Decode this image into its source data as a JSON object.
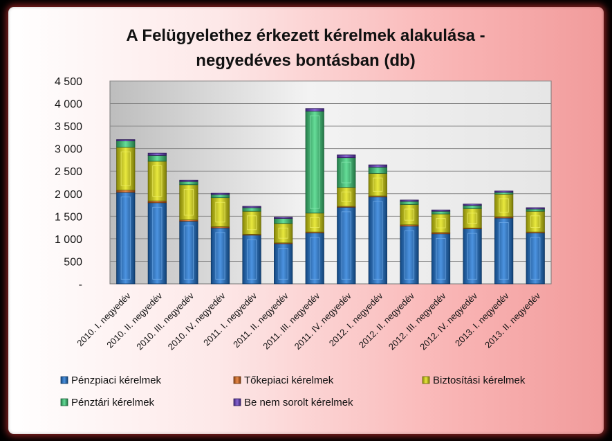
{
  "chart_data": {
    "type": "bar",
    "stacked": true,
    "title_lines": [
      "A Felügyelethez érkezett kérelmek alakulása -",
      "negyedéves bontásban (db)"
    ],
    "categories": [
      "2010. I. negyedév",
      "2010. II. negyedév",
      "2010. III. negyedév",
      "2010. IV. negyedév",
      "2011. I. negyedév",
      "2011. II. negyedév",
      "2011. III. negyedév",
      "2011. IV. negyedév",
      "2012. I. negyedév",
      "2012. II. negyedév",
      "2012. III. negyedév",
      "2012. IV. negyedév",
      "2013. I. negyedév",
      "2013. II. negyedév"
    ],
    "series": [
      {
        "name": "Pénzpiaci kérelmek",
        "color": "#1f78d8",
        "values": [
          2030,
          1800,
          1390,
          1240,
          1080,
          890,
          1130,
          1700,
          1930,
          1280,
          1110,
          1220,
          1460,
          1130
        ]
      },
      {
        "name": "Tőkepiaci kérelmek",
        "color": "#e36c1c",
        "values": [
          50,
          40,
          30,
          30,
          20,
          20,
          20,
          20,
          20,
          30,
          30,
          20,
          30,
          20
        ]
      },
      {
        "name": "Biztosítási kérelmek",
        "color": "#e2e20e",
        "values": [
          950,
          880,
          780,
          640,
          510,
          430,
          420,
          420,
          500,
          450,
          410,
          430,
          500,
          460
        ]
      },
      {
        "name": "Pénztári kérelmek",
        "color": "#3fd47e",
        "values": [
          140,
          130,
          70,
          70,
          80,
          110,
          2260,
          660,
          140,
          70,
          60,
          70,
          40,
          50
        ]
      },
      {
        "name": "Be nem sorolt kérelmek",
        "color": "#6a3fc8",
        "values": [
          30,
          50,
          30,
          30,
          30,
          30,
          60,
          60,
          50,
          30,
          30,
          30,
          30,
          30
        ]
      }
    ],
    "ylim": [
      0,
      4500
    ],
    "yticks": [
      0,
      500,
      1000,
      1500,
      2000,
      2500,
      3000,
      3500,
      4000,
      4500
    ],
    "ytick_labels": [
      "-",
      "500",
      "1 000",
      "1 500",
      "2 000",
      "2 500",
      "3 000",
      "3 500",
      "4 000",
      "4 500"
    ],
    "grid": true,
    "legend_position": "bottom"
  }
}
